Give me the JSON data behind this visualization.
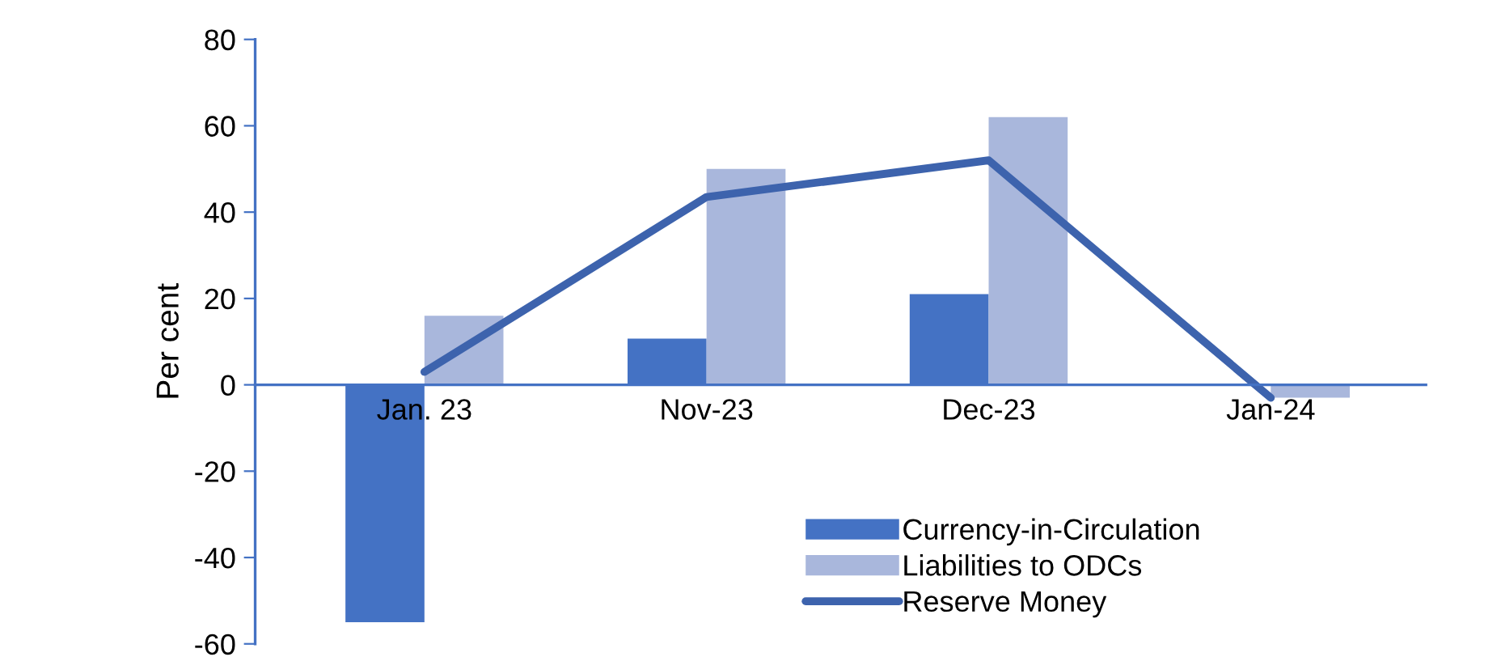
{
  "chart_data": {
    "type": "bar",
    "ylabel": "Per cent",
    "categories": [
      "Jan. 23",
      "Nov-23",
      "Dec-23",
      "Jan-24"
    ],
    "series": [
      {
        "name": "Currency-in-Circulation",
        "color": "#4472c4",
        "values": [
          -55,
          10.7,
          21,
          null
        ]
      },
      {
        "name": "Liabilities to ODCs",
        "color": "#a9b7dc",
        "values": [
          16,
          50,
          62,
          -3
        ]
      },
      {
        "name": "Reserve Money",
        "type": "line",
        "color": "#3d63ad",
        "values": [
          3,
          43.5,
          52,
          -3
        ]
      }
    ],
    "ylim": [
      -60,
      80
    ],
    "yticks": [
      -60,
      -40,
      -20,
      0,
      20,
      40,
      60,
      80
    ],
    "grid": false,
    "legend": "bottom right",
    "marker": "none",
    "line_style": "solid"
  }
}
